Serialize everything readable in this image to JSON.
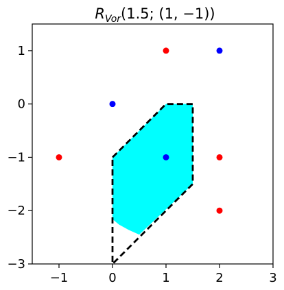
{
  "chart_data": {
    "type": "scatter",
    "title": {
      "base": "R",
      "subscript": "Vor",
      "rest": "(1.5; (1, −1))"
    },
    "xlabel": "",
    "ylabel": "",
    "xlim": [
      -1.5,
      3
    ],
    "ylim": [
      -3,
      1.5
    ],
    "x_ticks": [
      -1,
      0,
      1,
      2,
      3
    ],
    "y_ticks": [
      1,
      0,
      -1,
      -2,
      -3
    ],
    "x_tick_labels": [
      "−1",
      "0",
      "1",
      "2",
      "3"
    ],
    "y_tick_labels": [
      "1",
      "0",
      "−1",
      "−2",
      "−3"
    ],
    "grid": false,
    "series": [
      {
        "color": "#ff0000",
        "points": [
          [
            1,
            1
          ],
          [
            -1,
            -1
          ],
          [
            2,
            -1
          ],
          [
            2,
            -2
          ]
        ]
      },
      {
        "color": "#0000ff",
        "points": [
          [
            2,
            1
          ],
          [
            0,
            0
          ],
          [
            1,
            -1
          ]
        ]
      }
    ],
    "shaded_region": {
      "color": "#00ffff",
      "outline": [
        [
          0,
          -1
        ],
        [
          1,
          0
        ],
        [
          1.5,
          0
        ],
        [
          1.5,
          -1.5
        ],
        [
          0.5,
          -2.45
        ],
        [
          0.3,
          -2.36
        ],
        [
          0.12,
          -2.26
        ],
        [
          0,
          -2.16
        ]
      ]
    },
    "dashed_polygon": {
      "color": "#000000",
      "vertices": [
        [
          0,
          -1
        ],
        [
          1,
          0
        ],
        [
          1.5,
          0
        ],
        [
          1.5,
          -1.5
        ],
        [
          0,
          -3
        ]
      ]
    }
  }
}
